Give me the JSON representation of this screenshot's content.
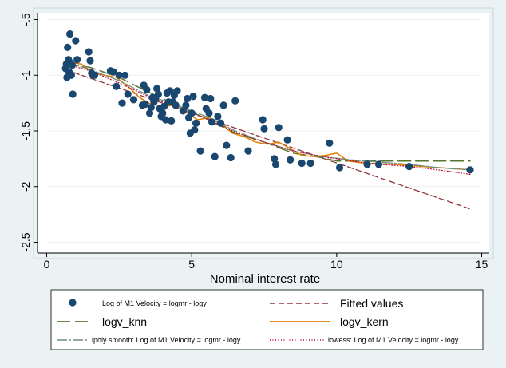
{
  "chart_data": {
    "type": "scatter",
    "xlabel": "Nominal interest rate",
    "ylabel": "",
    "xlim": [
      0,
      15
    ],
    "ylim": [
      -2.5,
      -0.5
    ],
    "xticks": [
      0,
      5,
      10,
      15
    ],
    "yticks": [
      -0.5,
      -1,
      -1.5,
      -2,
      -2.5
    ],
    "xtick_labels": [
      "0",
      "5",
      "10",
      "15"
    ],
    "ytick_labels": [
      "-.5",
      "-1",
      "-1.5",
      "-2",
      "-2.5"
    ],
    "grid": "horizontal",
    "legend_placement": "bottom",
    "colors": {
      "scatter": "#1a476f",
      "fitted": "#90353b",
      "knn": "#55752f",
      "kern": "#e37e00",
      "lpoly": "#6e8e84",
      "lowess": "#c10534"
    },
    "series": [
      {
        "name": "Log of M1 Velocity = logmr - logy",
        "kind": "scatter",
        "x": [
          0.65,
          0.68,
          0.7,
          0.72,
          0.75,
          0.77,
          0.78,
          0.8,
          0.82,
          0.85,
          0.88,
          0.9,
          1.0,
          1.05,
          1.45,
          1.5,
          1.55,
          1.6,
          1.65,
          2.2,
          2.3,
          2.4,
          2.5,
          2.6,
          2.7,
          2.8,
          3.0,
          3.3,
          3.35,
          3.4,
          3.45,
          3.55,
          3.6,
          3.65,
          3.7,
          3.75,
          3.8,
          3.85,
          3.9,
          3.95,
          4.0,
          4.05,
          4.1,
          4.15,
          4.2,
          4.25,
          4.3,
          4.35,
          4.4,
          4.45,
          4.5,
          4.7,
          4.8,
          4.85,
          4.9,
          4.95,
          5.0,
          5.05,
          5.1,
          5.15,
          5.3,
          5.45,
          5.5,
          5.6,
          5.65,
          5.7,
          5.8,
          5.9,
          6.0,
          6.1,
          6.2,
          6.35,
          6.5,
          6.95,
          7.45,
          7.5,
          7.85,
          7.9,
          8.0,
          8.3,
          8.4,
          8.8,
          9.1,
          9.75,
          10.1,
          11.05,
          11.45,
          12.5,
          14.6
        ],
        "y": [
          -0.94,
          -0.9,
          -1.02,
          -0.75,
          -0.86,
          -0.97,
          -1.0,
          -0.63,
          -0.89,
          -1.0,
          -0.91,
          -1.17,
          -0.69,
          -0.86,
          -0.79,
          -0.87,
          -0.98,
          -1.0,
          -1.0,
          -0.96,
          -0.97,
          -1.1,
          -1.0,
          -1.25,
          -1.0,
          -1.17,
          -1.22,
          -1.27,
          -1.09,
          -1.26,
          -1.13,
          -1.34,
          -1.29,
          -1.2,
          -1.24,
          -1.21,
          -1.12,
          -1.17,
          -1.3,
          -1.37,
          -1.34,
          -1.28,
          -1.4,
          -1.16,
          -1.24,
          -1.14,
          -1.41,
          -1.24,
          -1.18,
          -1.27,
          -1.14,
          -1.32,
          -1.27,
          -1.21,
          -1.38,
          -1.52,
          -1.34,
          -1.19,
          -1.49,
          -1.43,
          -1.68,
          -1.2,
          -1.3,
          -1.34,
          -1.21,
          -1.42,
          -1.73,
          -1.37,
          -1.43,
          -1.27,
          -1.63,
          -1.74,
          -1.23,
          -1.68,
          -1.4,
          -1.48,
          -1.75,
          -1.8,
          -1.47,
          -1.58,
          -1.76,
          -1.79,
          -1.79,
          -1.61,
          -1.83,
          -1.8,
          -1.8,
          -1.82,
          -1.85
        ]
      },
      {
        "name": "Fitted values",
        "kind": "line",
        "x": [
          0.65,
          14.6
        ],
        "y": [
          -0.95,
          -2.2
        ]
      },
      {
        "name": "logv_knn",
        "kind": "line",
        "x": [
          0.65,
          1.5,
          2.5,
          3.5,
          4.5,
          5.5,
          6.5,
          7.5,
          8.5,
          9.5,
          10.0,
          11.0,
          12.5,
          14.6
        ],
        "y": [
          -0.9,
          -0.93,
          -1.02,
          -1.15,
          -1.27,
          -1.39,
          -1.52,
          -1.6,
          -1.7,
          -1.74,
          -1.77,
          -1.77,
          -1.77,
          -1.77
        ]
      },
      {
        "name": "logv_kern",
        "kind": "line",
        "x": [
          0.65,
          1.2,
          1.6,
          2.0,
          2.4,
          2.8,
          3.2,
          3.6,
          4.0,
          4.4,
          4.8,
          5.2,
          5.6,
          6.0,
          6.4,
          6.8,
          7.2,
          7.6,
          8.0,
          8.4,
          8.8,
          9.2,
          9.6,
          10.0,
          10.4,
          11.0,
          12.0,
          13.0,
          14.6
        ],
        "y": [
          -0.88,
          -0.9,
          -0.98,
          -1.0,
          -1.02,
          -1.1,
          -1.2,
          -1.26,
          -1.28,
          -1.27,
          -1.33,
          -1.4,
          -1.38,
          -1.43,
          -1.52,
          -1.55,
          -1.6,
          -1.62,
          -1.6,
          -1.66,
          -1.72,
          -1.73,
          -1.72,
          -1.7,
          -1.77,
          -1.79,
          -1.8,
          -1.82,
          -1.85
        ]
      },
      {
        "name": "lpoly smooth: Log of M1 Velocity = logmr - logy",
        "kind": "line",
        "x": [
          0.65,
          1.5,
          2.5,
          3.5,
          4.5,
          5.5,
          6.5,
          7.5,
          8.5,
          9.5,
          10.5,
          11.5,
          12.5,
          13.5,
          14.6
        ],
        "y": [
          -0.88,
          -0.95,
          -1.05,
          -1.18,
          -1.27,
          -1.37,
          -1.5,
          -1.6,
          -1.68,
          -1.73,
          -1.76,
          -1.78,
          -1.8,
          -1.83,
          -1.85
        ]
      },
      {
        "name": "lowess: Log of M1 Velocity = logmr - logy",
        "kind": "line",
        "x": [
          0.65,
          1.5,
          2.5,
          3.5,
          4.5,
          5.5,
          6.5,
          7.5,
          8.5,
          9.5,
          10.5,
          11.5,
          12.5,
          13.5,
          14.6
        ],
        "y": [
          -0.9,
          -0.96,
          -1.07,
          -1.19,
          -1.29,
          -1.39,
          -1.51,
          -1.6,
          -1.68,
          -1.73,
          -1.77,
          -1.8,
          -1.82,
          -1.85,
          -1.89
        ]
      }
    ]
  }
}
